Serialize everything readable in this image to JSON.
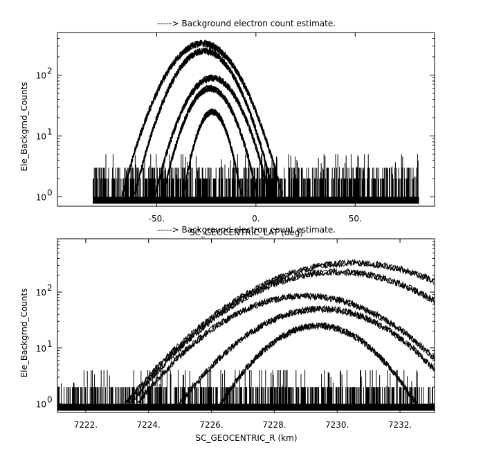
{
  "chart_data": [
    {
      "type": "line",
      "title": "-----> Background electron count estimate.",
      "xlabel": "SC_GEOCENTRIC_LAT (deg)",
      "ylabel": "Ele_Backgrnd_Counts",
      "xlim": [
        -100,
        90
      ],
      "ylim": [
        0.7,
        500
      ],
      "yscale": "log",
      "xticks": [
        -50,
        0,
        50
      ],
      "xtick_labels": [
        "-50.",
        "0.",
        "50."
      ],
      "yticks": [
        1,
        10,
        100
      ],
      "ytick_labels": [
        "10",
        "10",
        "10"
      ],
      "ytick_exponents": [
        "0",
        "1",
        "2"
      ],
      "grid": false,
      "noise_floor": {
        "x_range": [
          -82,
          82
        ],
        "levels": [
          1,
          2,
          3
        ]
      },
      "series": [
        {
          "center_x": -27,
          "peak_y": 330,
          "half_width": 37
        },
        {
          "center_x": -26,
          "peak_y": 250,
          "half_width": 33
        },
        {
          "center_x": -22,
          "peak_y": 90,
          "half_width": 30
        },
        {
          "center_x": -23,
          "peak_y": 60,
          "half_width": 26
        },
        {
          "center_x": -22,
          "peak_y": 25,
          "half_width": 18
        }
      ]
    },
    {
      "type": "line",
      "title": "-----> Background electron count estimate.",
      "xlabel": "SC_GEOCENTRIC_R (km)",
      "ylabel": "Ele_Backgrnd_Counts",
      "xlim": [
        7221.1,
        7233.1
      ],
      "ylim": [
        0.7,
        900
      ],
      "yscale": "log",
      "xticks": [
        7222,
        7224,
        7226,
        7228,
        7230,
        7232
      ],
      "xtick_labels": [
        "7222.",
        "7224.",
        "7226.",
        "7228.",
        "7230.",
        "7232."
      ],
      "yticks": [
        1,
        10,
        100
      ],
      "ytick_labels": [
        "10",
        "10",
        "10"
      ],
      "ytick_exponents": [
        "0",
        "1",
        "2"
      ],
      "grid": false,
      "noise_floor": {
        "x_range": [
          7221.1,
          7233.1
        ],
        "levels": [
          1,
          2
        ]
      },
      "series": [
        {
          "center_x": 7230.5,
          "peak_y": 330,
          "half_width": 6.6
        },
        {
          "center_x": 7230.0,
          "peak_y": 230,
          "half_width": 6.2
        },
        {
          "center_x": 7229.0,
          "peak_y": 85,
          "half_width": 5.6
        },
        {
          "center_x": 7229.5,
          "peak_y": 50,
          "half_width": 5.0
        },
        {
          "center_x": 7229.4,
          "peak_y": 25,
          "half_width": 3.8
        }
      ]
    }
  ]
}
